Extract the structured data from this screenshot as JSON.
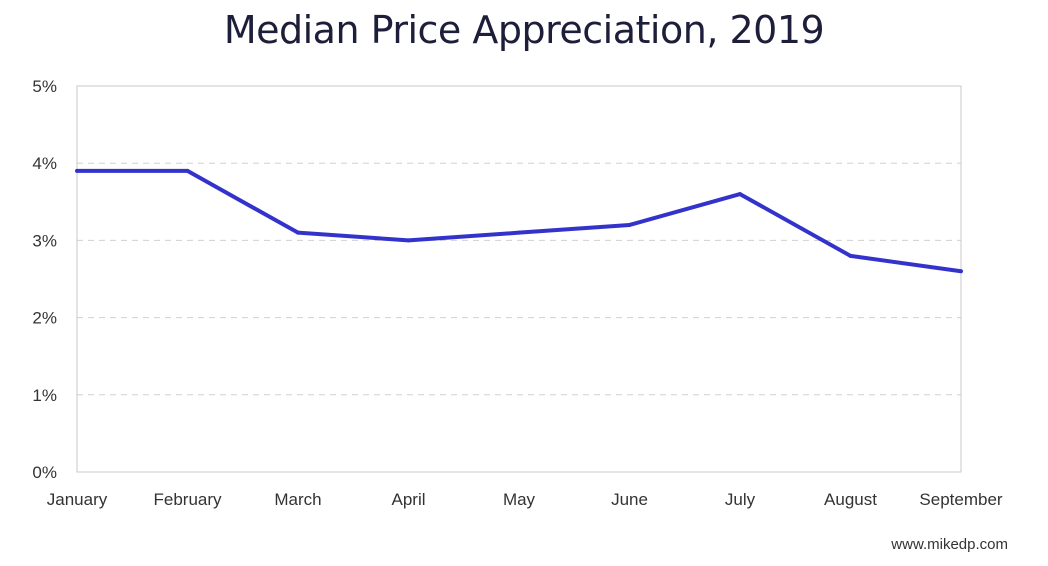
{
  "title": "Median Price Appreciation, 2019",
  "credit": "www.mikedp.com",
  "colors": {
    "line": "#3333cc",
    "grid": "#d0d0d0",
    "axis": "#c8c8c8",
    "text": "#333333"
  },
  "chart_data": {
    "type": "line",
    "title": "Median Price Appreciation, 2019",
    "categories": [
      "January",
      "February",
      "March",
      "April",
      "May",
      "June",
      "July",
      "August",
      "September"
    ],
    "series": [
      {
        "values": [
          3.9,
          3.9,
          3.1,
          3.0,
          3.1,
          3.2,
          3.6,
          2.8,
          2.6
        ]
      }
    ],
    "ylim": [
      0,
      5
    ],
    "yticks": [
      0,
      1,
      2,
      3,
      4,
      5
    ],
    "ytick_labels": [
      "0%",
      "1%",
      "2%",
      "3%",
      "4%",
      "5%"
    ],
    "grid": "horizontal dashed",
    "legend": "none"
  }
}
